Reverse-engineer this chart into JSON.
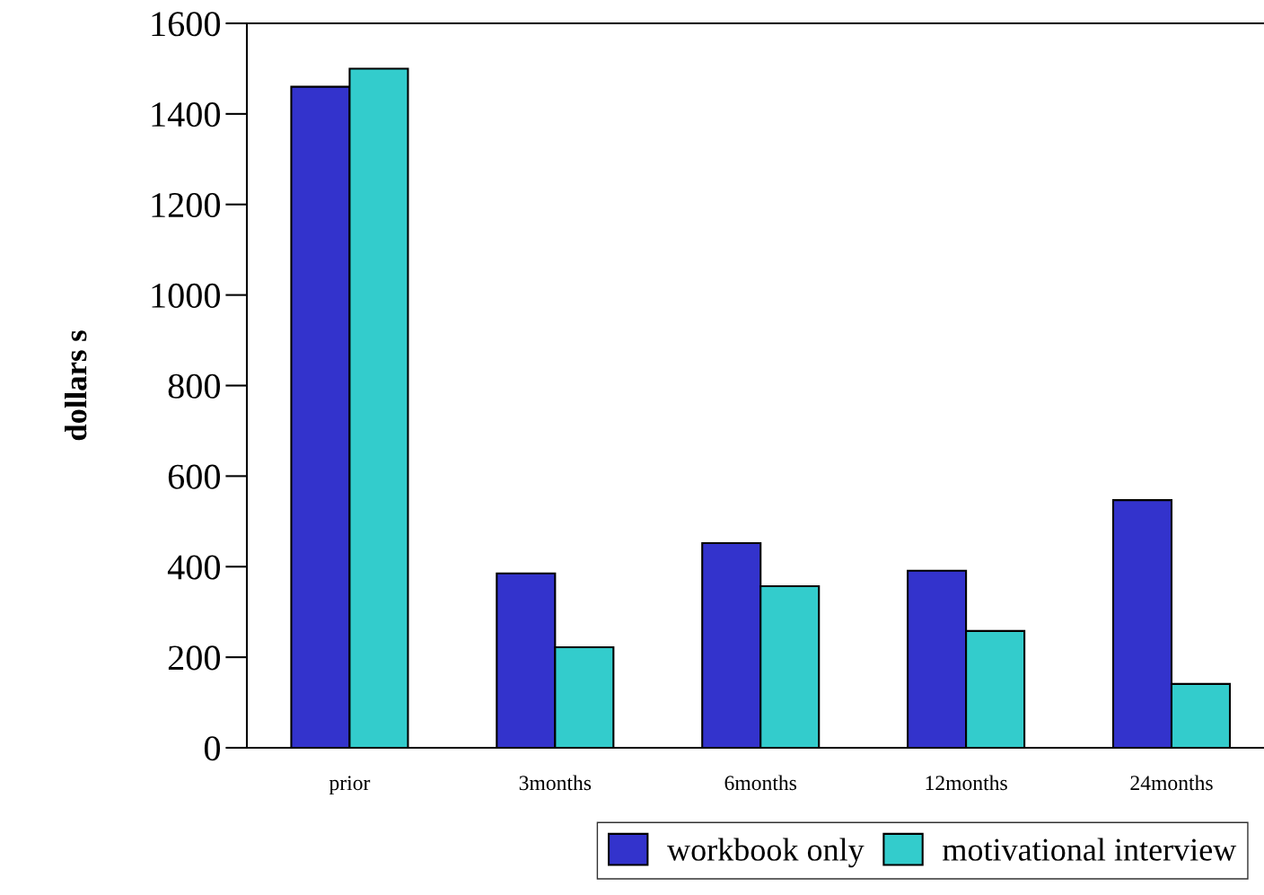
{
  "chart_data": {
    "type": "bar",
    "ylabel": "dollars s",
    "categories": [
      "prior",
      "3months",
      "6months",
      "12months",
      "24months"
    ],
    "series": [
      {
        "name": "workbook only",
        "color": "#3333cc",
        "values": [
          1460,
          385,
          452,
          391,
          547
        ]
      },
      {
        "name": "motivational interview",
        "color": "#33cccc",
        "values": [
          1500,
          222,
          357,
          258,
          141
        ]
      }
    ],
    "ylim": [
      0,
      1600
    ],
    "yticks": [
      0,
      200,
      400,
      600,
      800,
      1000,
      1200,
      1400,
      1600
    ],
    "grid": false,
    "legend": "bottom"
  }
}
